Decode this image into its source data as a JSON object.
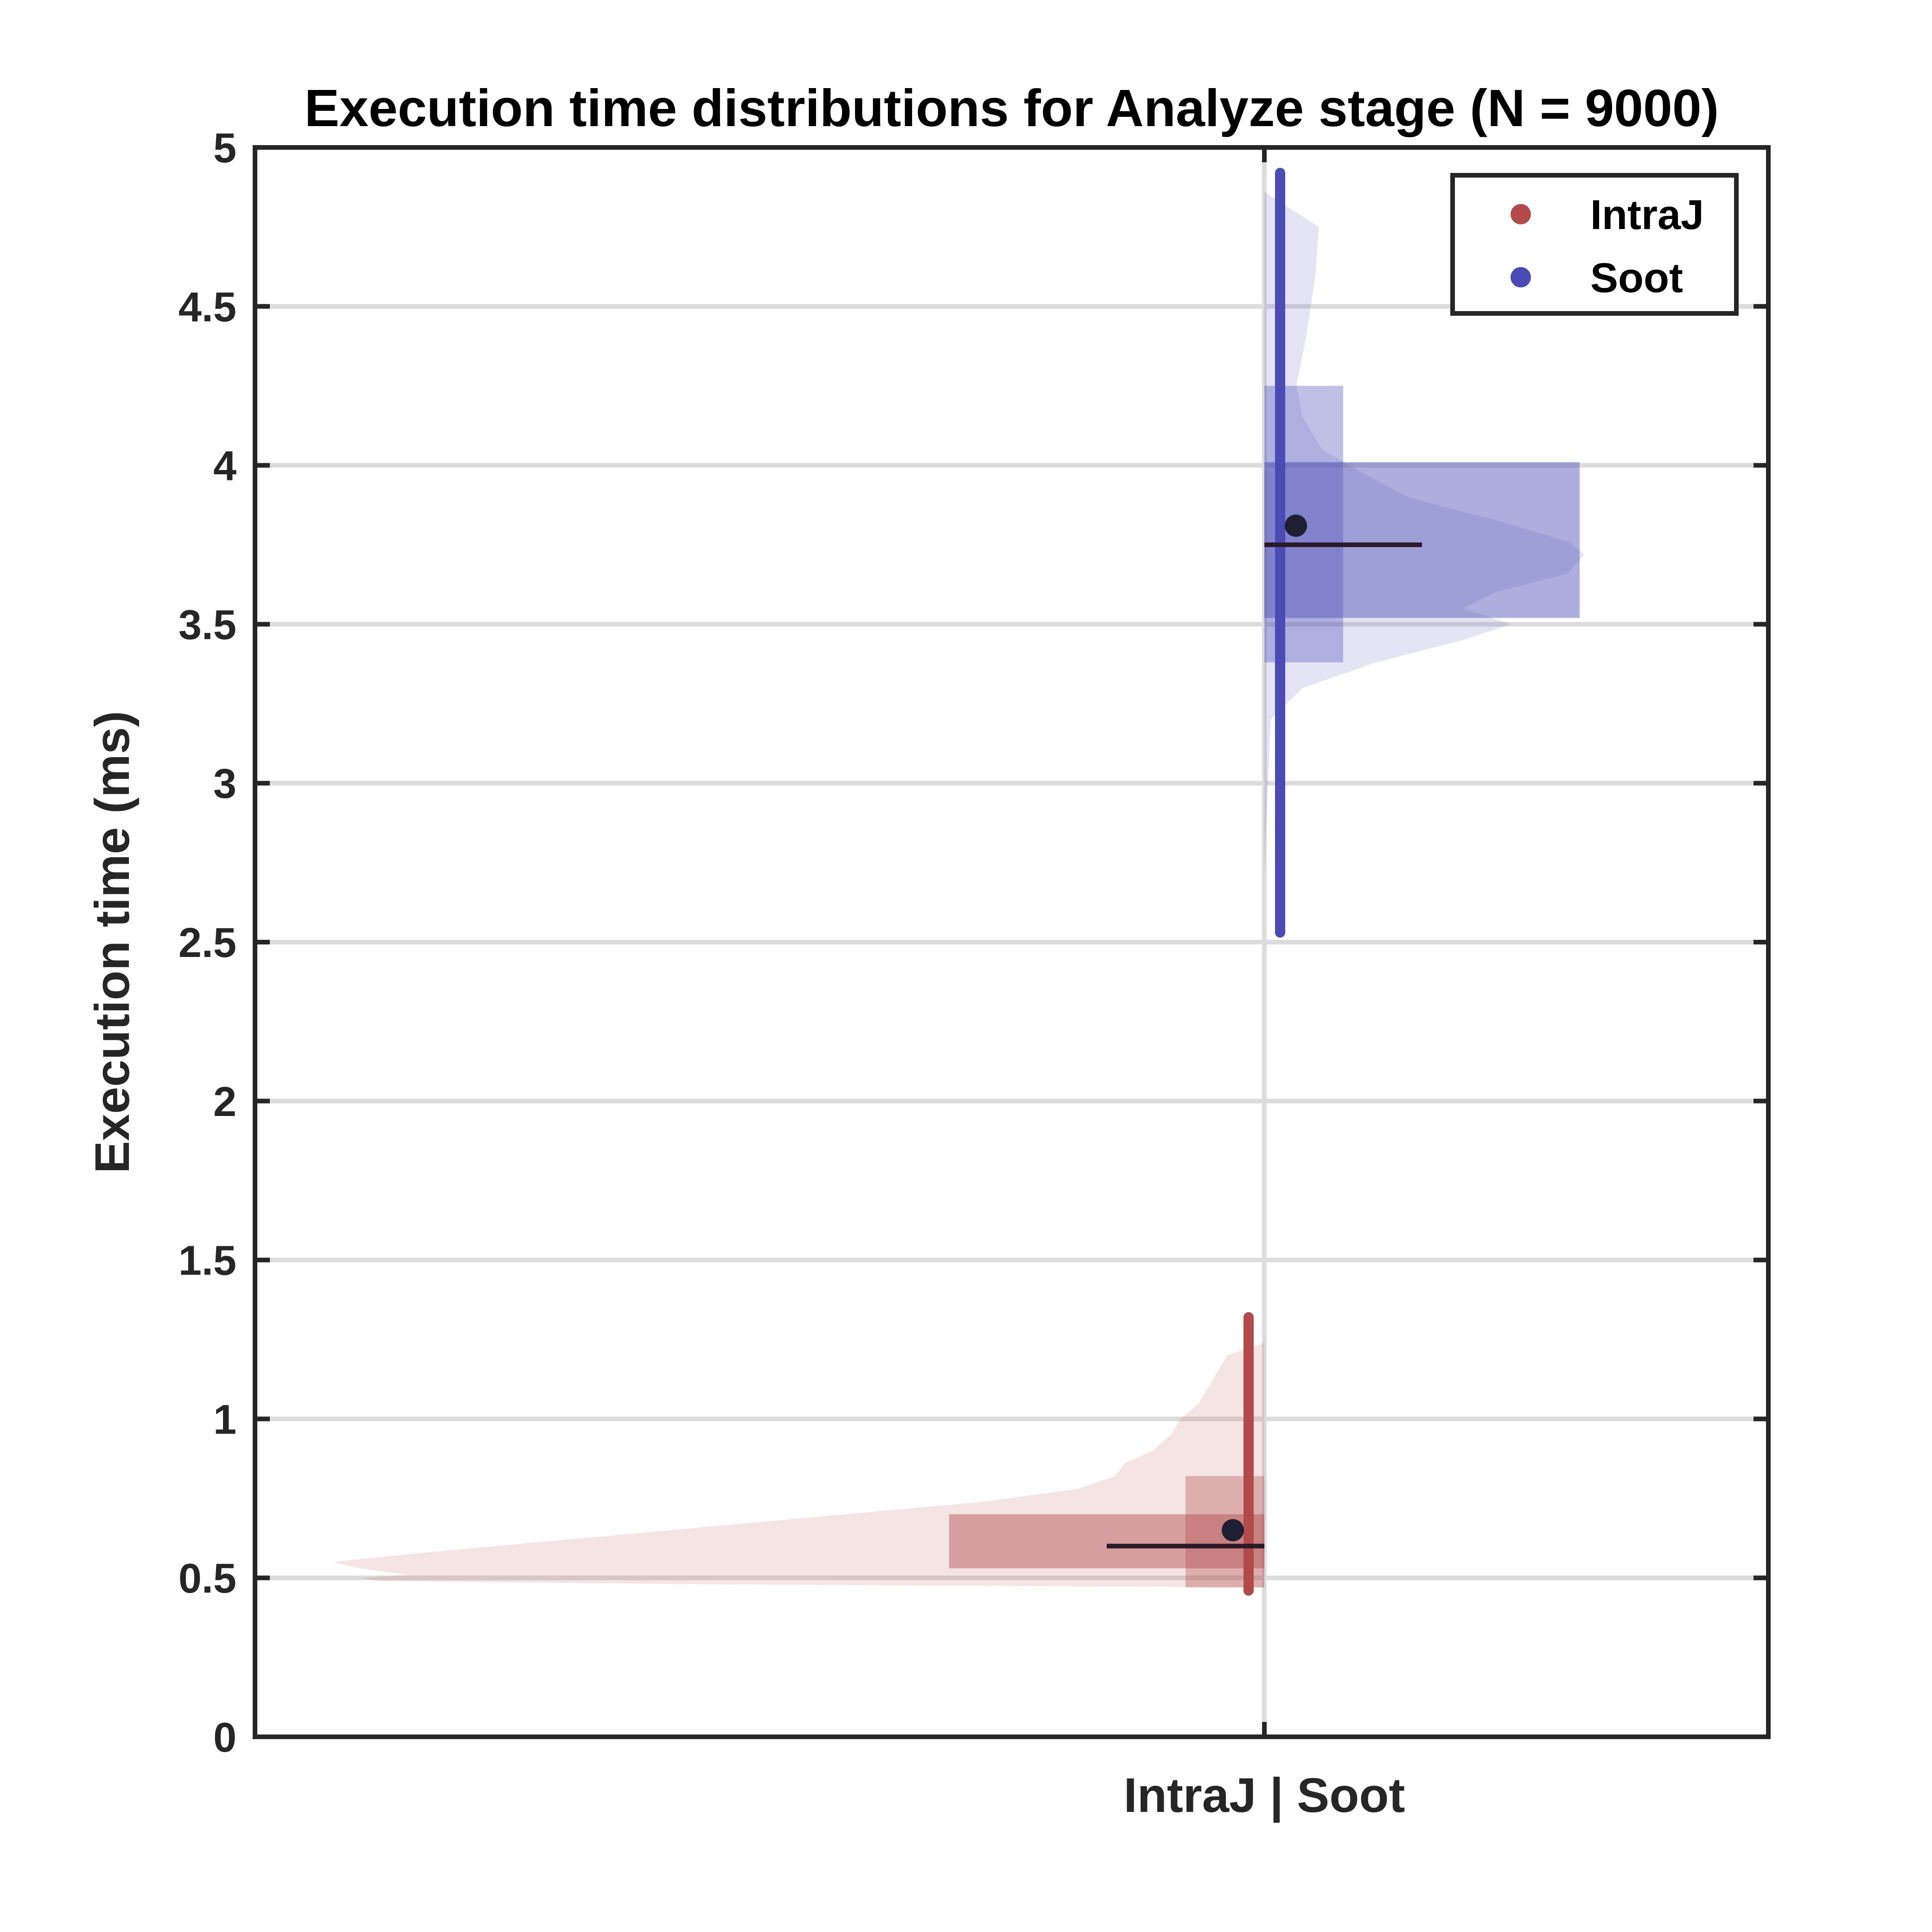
{
  "chart_data": {
    "type": "violin",
    "title": "Execution time distributions for Analyze stage (N = 9000)",
    "xlabel": "IntraJ | Soot",
    "ylabel": "Execution time (ms)",
    "ylim": [
      0,
      5
    ],
    "yticks": [
      0,
      0.5,
      1,
      1.5,
      2,
      2.5,
      3,
      3.5,
      4,
      4.5,
      5
    ],
    "ytick_labels": [
      "0",
      "0.5",
      "1",
      "1.5",
      "2",
      "2.5",
      "3",
      "3.5",
      "4",
      "4.5",
      "5"
    ],
    "grid": "horizontal",
    "legend_position": "top-right",
    "series": [
      {
        "name": "IntraJ",
        "color": "#b24a4a",
        "side": "left",
        "mean": 0.65,
        "median": 0.6,
        "whisker": [
          0.46,
          1.32
        ],
        "iqr": [
          0.53,
          0.7
        ],
        "range_box": [
          0.47,
          0.82
        ],
        "density_extent": [
          0.47,
          1.24
        ],
        "density_profile": [
          [
            0.47,
            0.0
          ],
          [
            0.48,
            0.6
          ],
          [
            0.49,
            0.95
          ],
          [
            0.5,
            0.97
          ],
          [
            0.51,
            0.92
          ],
          [
            0.53,
            0.97
          ],
          [
            0.55,
            1.0
          ],
          [
            0.58,
            0.9
          ],
          [
            0.62,
            0.75
          ],
          [
            0.66,
            0.6
          ],
          [
            0.7,
            0.45
          ],
          [
            0.74,
            0.3
          ],
          [
            0.78,
            0.2
          ],
          [
            0.82,
            0.16
          ],
          [
            0.86,
            0.15
          ],
          [
            0.9,
            0.12
          ],
          [
            0.95,
            0.1
          ],
          [
            1.0,
            0.09
          ],
          [
            1.05,
            0.07
          ],
          [
            1.1,
            0.06
          ],
          [
            1.15,
            0.05
          ],
          [
            1.2,
            0.04
          ],
          [
            1.24,
            0.0
          ]
        ]
      },
      {
        "name": "Soot",
        "color": "#4b4bb6",
        "side": "right",
        "mean": 3.81,
        "median": 3.75,
        "whisker": [
          2.53,
          4.92
        ],
        "iqr": [
          3.52,
          4.01
        ],
        "range_box": [
          3.38,
          4.25
        ],
        "density_extent": [
          2.72,
          4.86
        ],
        "density_profile": [
          [
            2.72,
            0.0
          ],
          [
            3.2,
            0.02
          ],
          [
            3.3,
            0.12
          ],
          [
            3.38,
            0.35
          ],
          [
            3.45,
            0.62
          ],
          [
            3.5,
            0.77
          ],
          [
            3.55,
            0.62
          ],
          [
            3.6,
            0.72
          ],
          [
            3.66,
            0.95
          ],
          [
            3.72,
            1.0
          ],
          [
            3.76,
            0.95
          ],
          [
            3.82,
            0.75
          ],
          [
            3.9,
            0.45
          ],
          [
            3.98,
            0.3
          ],
          [
            4.05,
            0.18
          ],
          [
            4.15,
            0.12
          ],
          [
            4.25,
            0.1
          ],
          [
            4.4,
            0.13
          ],
          [
            4.6,
            0.16
          ],
          [
            4.75,
            0.17
          ],
          [
            4.86,
            0.0
          ]
        ]
      }
    ]
  }
}
